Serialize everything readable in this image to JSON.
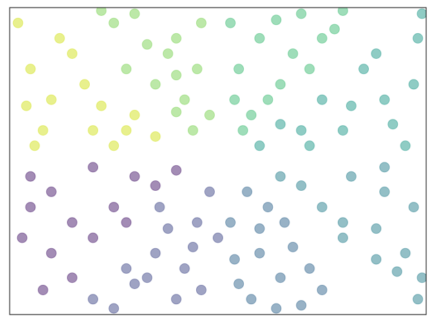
{
  "chart_data": {
    "type": "scatter",
    "xlim": [
      0,
      1
    ],
    "ylim": [
      0,
      1
    ],
    "alpha": 0.5,
    "series": [
      {
        "color": "#481a6c",
        "x": [
          0.05,
          0.1,
          0.2,
          0.15,
          0.03,
          0.25,
          0.3,
          0.1,
          0.35,
          0.2,
          0.4,
          0.05,
          0.28,
          0.15,
          0.08
        ],
        "y": [
          0.45,
          0.4,
          0.48,
          0.3,
          0.25,
          0.35,
          0.45,
          0.2,
          0.42,
          0.25,
          0.47,
          0.35,
          0.3,
          0.12,
          0.08
        ]
      },
      {
        "color": "#3f4788",
        "x": [
          0.3,
          0.35,
          0.4,
          0.45,
          0.25,
          0.42,
          0.48,
          0.38,
          0.2,
          0.46,
          0.33,
          0.44,
          0.28,
          0.5,
          0.36
        ],
        "y": [
          0.1,
          0.2,
          0.05,
          0.3,
          0.02,
          0.15,
          0.4,
          0.28,
          0.05,
          0.08,
          0.12,
          0.22,
          0.15,
          0.25,
          0.35
        ]
      },
      {
        "color": "#32658e",
        "x": [
          0.55,
          0.6,
          0.58,
          0.65,
          0.53,
          0.7,
          0.62,
          0.57,
          0.68,
          0.75,
          0.6,
          0.54,
          0.72,
          0.64,
          0.66
        ],
        "y": [
          0.1,
          0.2,
          0.05,
          0.12,
          0.3,
          0.03,
          0.35,
          0.4,
          0.22,
          0.08,
          0.28,
          0.18,
          0.15,
          0.02,
          0.3
        ]
      },
      {
        "color": "#27808e",
        "x": [
          0.8,
          0.9,
          0.95,
          0.88,
          0.7,
          0.98,
          0.75,
          0.88,
          0.93,
          0.82,
          0.65,
          0.97,
          0.8,
          0.9,
          0.99
        ],
        "y": [
          0.3,
          0.4,
          0.2,
          0.18,
          0.42,
          0.05,
          0.35,
          0.28,
          0.14,
          0.45,
          0.45,
          0.35,
          0.25,
          0.48,
          0.12
        ]
      },
      {
        "color": "#1f9a8a",
        "x": [
          0.8,
          0.9,
          0.95,
          0.7,
          0.85,
          0.98,
          0.75,
          0.6,
          0.92,
          0.82,
          0.88,
          0.65,
          0.97,
          0.72,
          0.99
        ],
        "y": [
          0.6,
          0.7,
          0.55,
          0.6,
          0.8,
          0.9,
          0.7,
          0.55,
          0.62,
          0.68,
          0.85,
          0.62,
          0.75,
          0.55,
          0.98
        ]
      },
      {
        "color": "#3dbc74",
        "x": [
          0.55,
          0.6,
          0.65,
          0.7,
          0.58,
          0.75,
          0.53,
          0.62,
          0.68,
          0.8,
          0.56,
          0.72,
          0.64,
          0.54,
          0.78
        ],
        "y": [
          0.8,
          0.9,
          0.75,
          0.98,
          0.65,
          0.9,
          0.95,
          0.7,
          0.85,
          0.99,
          0.6,
          0.8,
          0.96,
          0.7,
          0.93
        ]
      },
      {
        "color": "#7ad151",
        "x": [
          0.45,
          0.4,
          0.35,
          0.3,
          0.48,
          0.25,
          0.42,
          0.38,
          0.46,
          0.33,
          0.44,
          0.28,
          0.4,
          0.22,
          0.4
        ],
        "y": [
          0.8,
          0.9,
          0.75,
          0.98,
          0.65,
          0.95,
          0.7,
          0.85,
          0.95,
          0.88,
          0.6,
          0.8,
          0.66,
          0.99,
          0.78
        ]
      },
      {
        "color": "#d2e21b",
        "x": [
          0.1,
          0.2,
          0.05,
          0.15,
          0.3,
          0.02,
          0.25,
          0.08,
          0.18,
          0.35,
          0.12,
          0.04,
          0.22,
          0.28,
          0.06
        ],
        "y": [
          0.7,
          0.6,
          0.8,
          0.85,
          0.65,
          0.95,
          0.55,
          0.6,
          0.75,
          0.58,
          0.9,
          0.68,
          0.68,
          0.6,
          0.55
        ]
      }
    ]
  }
}
